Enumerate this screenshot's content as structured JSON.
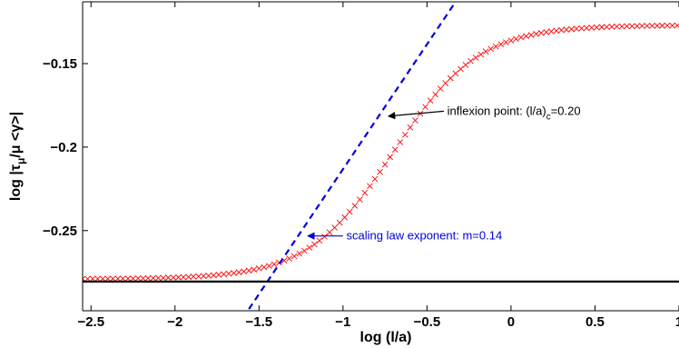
{
  "chart_data": {
    "type": "line",
    "title": "",
    "xlabel": "log (l/a)",
    "ylabel": "log |τ_μ/μ <γ>|",
    "xlim": [
      -2.55,
      1.0
    ],
    "ylim": [
      -0.298,
      -0.113
    ],
    "xticks": [
      -2.5,
      -2,
      -1.5,
      -1,
      -0.5,
      0,
      0.5,
      1
    ],
    "xtick_labels": [
      "−2.5",
      "−2",
      "−1.5",
      "−1",
      "−0.5",
      "0",
      "0.5",
      "1"
    ],
    "yticks": [
      -0.15,
      -0.2,
      -0.25
    ],
    "ytick_labels": [
      "−0.15",
      "−0.2",
      "−0.25"
    ],
    "grid": false,
    "series": [
      {
        "kind": "markers",
        "marker": "x",
        "color": "#ff0000",
        "sigmoid": {
          "low": -0.279,
          "high": -0.127,
          "center": -0.7,
          "width": 0.255
        },
        "x_start": -2.55,
        "x_end": 1.0,
        "x_step": 0.03
      },
      {
        "kind": "dashed-line",
        "color": "#0000dd",
        "x": [
          -1.56,
          -0.33
        ],
        "y": [
          -0.297,
          -0.113
        ]
      },
      {
        "kind": "solid-line",
        "color": "#000000",
        "y": -0.2805
      }
    ],
    "annotations": [
      {
        "text_main": "inflexion point: (l/a)",
        "text_sub": "c",
        "text_tail": "=0.20",
        "color": "#000000",
        "text_x": -0.38,
        "text_y": -0.1785,
        "arrow_from": [
          -0.4,
          -0.1785
        ],
        "arrow_to": [
          -0.73,
          -0.1815
        ]
      },
      {
        "text_main": "scaling law exponent: m=0.14",
        "color": "#0000dd",
        "text_x": -0.98,
        "text_y": -0.2532,
        "arrow_from": [
          -1.0,
          -0.2532
        ],
        "arrow_to": [
          -1.21,
          -0.2532
        ]
      }
    ]
  }
}
